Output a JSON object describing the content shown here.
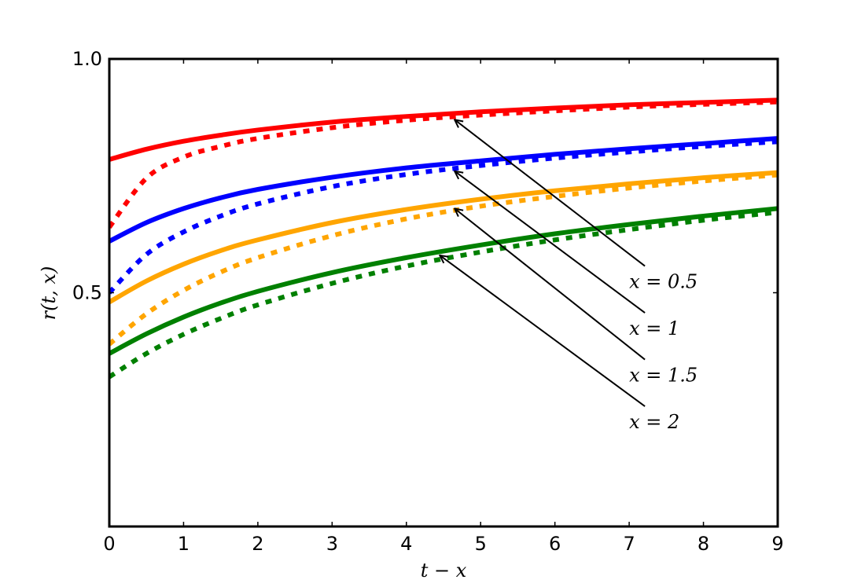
{
  "chart_data": {
    "type": "line",
    "xlabel": "t − x",
    "ylabel": "r(t, x)",
    "xlim": [
      0,
      9
    ],
    "ylim": [
      0.0,
      1.0
    ],
    "x_ticks": [
      "0",
      "1",
      "2",
      "3",
      "4",
      "5",
      "6",
      "7",
      "8",
      "9"
    ],
    "y_ticks": [
      {
        "value": 0.5,
        "label": "0.5"
      },
      {
        "value": 1.0,
        "label": "1.0"
      }
    ],
    "x": [
      0,
      0.5,
      1,
      1.5,
      2,
      3,
      4,
      5,
      6,
      7,
      8,
      9
    ],
    "series": [
      {
        "color": "#ff0000",
        "style": "solid",
        "values": [
          0.785,
          0.807,
          0.824,
          0.837,
          0.848,
          0.865,
          0.877,
          0.887,
          0.895,
          0.902,
          0.907,
          0.912
        ]
      },
      {
        "color": "#ff0000",
        "style": "dashed",
        "values": [
          0.64,
          0.745,
          0.79,
          0.813,
          0.83,
          0.853,
          0.869,
          0.88,
          0.889,
          0.897,
          0.903,
          0.908
        ]
      },
      {
        "color": "#0000ff",
        "style": "solid",
        "values": [
          0.61,
          0.65,
          0.68,
          0.703,
          0.721,
          0.747,
          0.767,
          0.782,
          0.796,
          0.808,
          0.819,
          0.83
        ]
      },
      {
        "color": "#0000ff",
        "style": "dashed",
        "values": [
          0.5,
          0.582,
          0.63,
          0.664,
          0.69,
          0.727,
          0.753,
          0.772,
          0.788,
          0.801,
          0.813,
          0.823
        ]
      },
      {
        "color": "#ffa500",
        "style": "solid",
        "values": [
          0.48,
          0.525,
          0.561,
          0.59,
          0.613,
          0.65,
          0.678,
          0.7,
          0.718,
          0.733,
          0.746,
          0.757
        ]
      },
      {
        "color": "#ffa500",
        "style": "dashed",
        "values": [
          0.39,
          0.455,
          0.505,
          0.544,
          0.575,
          0.622,
          0.658,
          0.685,
          0.706,
          0.724,
          0.739,
          0.752
        ]
      },
      {
        "color": "#008000",
        "style": "solid",
        "values": [
          0.37,
          0.412,
          0.448,
          0.478,
          0.503,
          0.543,
          0.575,
          0.602,
          0.626,
          0.646,
          0.664,
          0.68
        ]
      },
      {
        "color": "#008000",
        "style": "dashed",
        "values": [
          0.32,
          0.37,
          0.411,
          0.445,
          0.474,
          0.52,
          0.557,
          0.587,
          0.613,
          0.635,
          0.655,
          0.672
        ]
      }
    ],
    "annotations": [
      {
        "text": "x = 0.5",
        "points_to": [
          4.65,
          0.87
        ],
        "text_at": [
          7.0,
          0.51
        ]
      },
      {
        "text": "x = 1",
        "points_to": [
          4.65,
          0.76
        ],
        "text_at": [
          7.0,
          0.41
        ]
      },
      {
        "text": "x = 1.5",
        "points_to": [
          4.65,
          0.68
        ],
        "text_at": [
          7.0,
          0.31
        ]
      },
      {
        "text": "x = 2",
        "points_to": [
          4.45,
          0.58
        ],
        "text_at": [
          7.0,
          0.21
        ]
      }
    ]
  }
}
